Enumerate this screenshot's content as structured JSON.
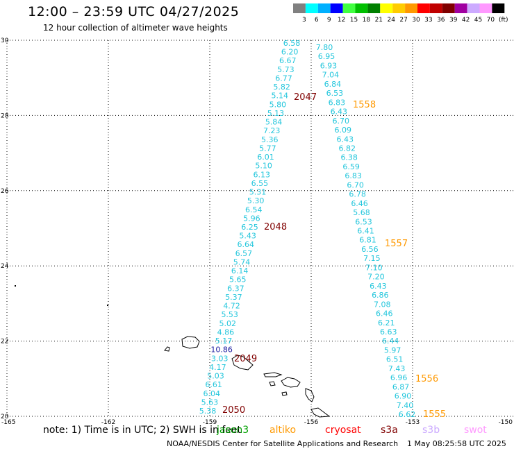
{
  "title": "12:00 – 23:59 UTC 04/27/2025",
  "subtitle": "12 hour collection of altimeter wave heights",
  "colorbar": {
    "unit": "(ft)",
    "bins": [
      {
        "label": "3",
        "color": "#808080"
      },
      {
        "label": "6",
        "color": "#00ffff"
      },
      {
        "label": "9",
        "color": "#00b0ff"
      },
      {
        "label": "12",
        "color": "#0000ff"
      },
      {
        "label": "15",
        "color": "#40ff40"
      },
      {
        "label": "18",
        "color": "#00c000"
      },
      {
        "label": "21",
        "color": "#008000"
      },
      {
        "label": "24",
        "color": "#ffff00"
      },
      {
        "label": "27",
        "color": "#ffcc00"
      },
      {
        "label": "30",
        "color": "#ff9900"
      },
      {
        "label": "33",
        "color": "#ff0000"
      },
      {
        "label": "36",
        "color": "#c00000"
      },
      {
        "label": "39",
        "color": "#800000"
      },
      {
        "label": "42",
        "color": "#a000a0"
      },
      {
        "label": "45",
        "color": "#ccaaff"
      },
      {
        "label": "70",
        "color": "#ff99ff"
      },
      {
        "label": "",
        "color": "#000000"
      }
    ]
  },
  "map": {
    "lon_range": [
      -165,
      -150
    ],
    "lat_range": [
      20,
      30
    ],
    "lon_ticks": [
      "-165",
      "-162",
      "-159",
      "-156",
      "-153",
      "-150"
    ],
    "lat_ticks": [
      "30",
      "28",
      "26",
      "24",
      "22",
      "20"
    ],
    "grid": true,
    "tracks": [
      {
        "name": "west",
        "values": [
          "6.58",
          "6.20",
          "6.67",
          "5.73",
          "6.77",
          "5.82",
          "5.14",
          "5.80",
          "5.13",
          "5.84",
          "7.23",
          "5.36",
          "5.77",
          "6.01",
          "5.10",
          "6.13",
          "6.55",
          "5.31",
          "5.30",
          "6.54",
          "5.96",
          "6.25",
          "5.43",
          "6.64",
          "6.57",
          "5.74",
          "6.14",
          "5.65",
          "6.37",
          "5.37",
          "4.72",
          "5.53",
          "5.02",
          "4.86",
          "5.17",
          "10.86",
          "3.03",
          "4.17",
          "5.03",
          "6.61",
          "6.04",
          "5.63",
          "5.38"
        ]
      },
      {
        "name": "east",
        "values": [
          "7.80",
          "6.95",
          "6.93",
          "7.04",
          "6.84",
          "6.53",
          "6.83",
          "6.43",
          "6.70",
          "6.09",
          "6.43",
          "6.82",
          "6.38",
          "6.59",
          "6.83",
          "6.70",
          "6.78",
          "6.46",
          "5.68",
          "6.53",
          "6.41",
          "6.81",
          "6.56",
          "7.15",
          "7.10",
          "7.20",
          "6.43",
          "6.86",
          "7.08",
          "6.46",
          "6.21",
          "6.63",
          "6.44",
          "5.97",
          "6.51",
          "7.43",
          "6.96",
          "6.87",
          "6.90",
          "7.40",
          "6.62"
        ]
      }
    ],
    "time_labels": [
      {
        "label": "2047",
        "color": "#800000"
      },
      {
        "label": "2048",
        "color": "#800000"
      },
      {
        "label": "2049",
        "color": "#800000"
      },
      {
        "label": "2050",
        "color": "#800000"
      },
      {
        "label": "1558",
        "color": "#ff9900"
      },
      {
        "label": "1557",
        "color": "#ff9900"
      },
      {
        "label": "1556",
        "color": "#ff9900"
      },
      {
        "label": "1555",
        "color": "#ff9900"
      }
    ]
  },
  "footer": {
    "note": "note:  1) Time is in UTC;  2) SWH is in feet",
    "missions": [
      {
        "label": "jason3",
        "color": "#00a000"
      },
      {
        "label": "altiko",
        "color": "#ff9900"
      },
      {
        "label": "cryosat",
        "color": "#ff0000"
      },
      {
        "label": "s3a",
        "color": "#800000"
      },
      {
        "label": "s3b",
        "color": "#ccaaff"
      },
      {
        "label": "swot",
        "color": "#ff99ff"
      }
    ],
    "credit": "NOAA/NESDIS Center for Satellite Applications and Research",
    "timestamp": "1 May 08:25:58 UTC 2025"
  }
}
